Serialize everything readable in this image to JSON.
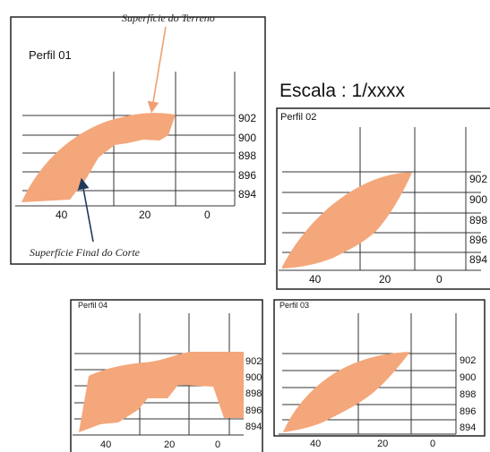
{
  "scale_label": "Escala : 1/xxxx",
  "fill_color": "#f4a77b",
  "terrain_arrow_color": "#f0a070",
  "cut_arrow_color": "#1f3a5a",
  "annotations": {
    "terrain_surface": "Superfície do Terreno",
    "final_cut_surface": "Superfície Final do Corte"
  },
  "profiles": [
    {
      "title": "Perfil 01",
      "elevations": [
        "902",
        "900",
        "898",
        "896",
        "894"
      ],
      "distances": [
        "40",
        "20",
        "0"
      ]
    },
    {
      "title": "Perfil 02",
      "elevations": [
        "902",
        "900",
        "898",
        "896",
        "894"
      ],
      "distances": [
        "40",
        "20",
        "0"
      ]
    },
    {
      "title": "Perfil 04",
      "elevations": [
        "902",
        "900",
        "898",
        "896",
        "894"
      ],
      "distances": [
        "40",
        "20",
        "0"
      ]
    },
    {
      "title": "Perfil 03",
      "elevations": [
        "902",
        "900",
        "898",
        "896",
        "894"
      ],
      "distances": [
        "40",
        "20",
        "0"
      ]
    }
  ]
}
